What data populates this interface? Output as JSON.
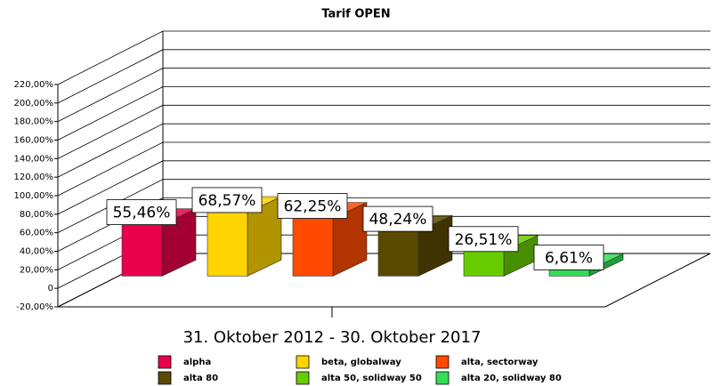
{
  "chart_data": {
    "type": "bar3d",
    "title": "Tarif OPEN",
    "x_label": "31. Oktober 2012 - 30. Oktober 2017",
    "ylim": [
      -20,
      220
    ],
    "yticks": [
      {
        "value": -20,
        "label": "-20,00%"
      },
      0,
      {
        "value": 20,
        "label": "20,00%"
      },
      {
        "value": 40,
        "label": "40,00%"
      },
      {
        "value": 60,
        "label": "60,00%"
      },
      {
        "value": 80,
        "label": "80,00%"
      },
      {
        "value": 100,
        "label": "100,00%"
      },
      {
        "value": 120,
        "label": "120,00%"
      },
      {
        "value": 140,
        "label": "140,00%"
      },
      {
        "value": 160,
        "label": "160,00%"
      },
      {
        "value": 180,
        "label": "180,00%"
      },
      {
        "value": 200,
        "label": "200,00%"
      },
      {
        "value": 220,
        "label": "220,00%"
      }
    ],
    "grid": true,
    "series": [
      {
        "name": "alpha",
        "color": "#e8004c",
        "values": [
          55.46
        ],
        "value_labels": [
          "55,46%"
        ]
      },
      {
        "name": "beta, globalway",
        "color": "#ffd400",
        "values": [
          68.57
        ],
        "value_labels": [
          "68,57%"
        ]
      },
      {
        "name": "alta, sectorway",
        "color": "#ff4a00",
        "values": [
          62.25
        ],
        "value_labels": [
          "62,25%"
        ]
      },
      {
        "name": "alta 80",
        "color": "#5a4a00",
        "values": [
          48.24
        ],
        "value_labels": [
          "48,24%"
        ]
      },
      {
        "name": "alta 50, solidway 50",
        "color": "#66cc00",
        "values": [
          26.51
        ],
        "value_labels": [
          "26,51%"
        ]
      },
      {
        "name": "alta 20, solidway 80",
        "color": "#33dd55",
        "values": [
          6.61
        ],
        "value_labels": [
          "6,61%"
        ]
      }
    ]
  }
}
